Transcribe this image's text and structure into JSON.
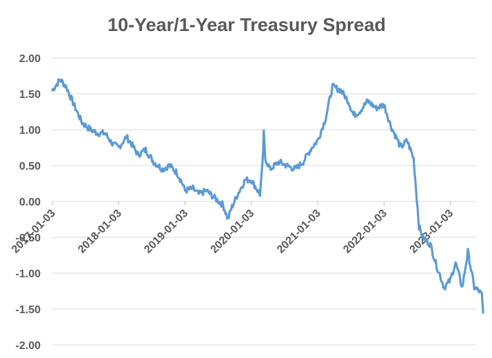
{
  "chart_data": {
    "type": "line",
    "title": "10-Year/1-Year Treasury Spread",
    "xlabel": "",
    "ylabel": "",
    "ylim": [
      -2.0,
      2.0
    ],
    "y_ticks": [
      "2.00",
      "1.50",
      "1.00",
      "0.50",
      "0.00",
      "-0.50",
      "-1.00",
      "-1.50",
      "-2.00"
    ],
    "x_ticks": [
      "2017-01-03",
      "2018-01-03",
      "2019-01-03",
      "2020-01-03",
      "2021-01-03",
      "2022-01-03",
      "2023-01-03"
    ],
    "grid": true,
    "legend": "none",
    "colors": {
      "line": "#5b9bd5",
      "grid": "#d9d9d9",
      "text": "#595959"
    },
    "series": [
      {
        "x": [
          "2017-01-03",
          "2017-02-15",
          "2017-03-20",
          "2017-05-01",
          "2017-06-15",
          "2017-08-01",
          "2017-09-10",
          "2017-10-20",
          "2017-12-01",
          "2018-01-03",
          "2018-02-15",
          "2018-03-15",
          "2018-04-20",
          "2018-06-01",
          "2018-07-15",
          "2018-09-01",
          "2018-10-10",
          "2018-11-20",
          "2018-12-20",
          "2019-01-03",
          "2019-02-15",
          "2019-03-20",
          "2019-05-01",
          "2019-06-15",
          "2019-08-01",
          "2019-08-28",
          "2019-09-15",
          "2019-10-20",
          "2019-12-01",
          "2020-01-03",
          "2020-02-20",
          "2020-03-05",
          "2020-03-12",
          "2020-03-20",
          "2020-04-15",
          "2020-06-05",
          "2020-07-15",
          "2020-09-01",
          "2020-10-15",
          "2020-12-01",
          "2021-01-03",
          "2021-02-15",
          "2021-03-25",
          "2021-05-10",
          "2021-06-20",
          "2021-07-20",
          "2021-08-20",
          "2021-10-05",
          "2021-11-20",
          "2022-01-03",
          "2022-02-10",
          "2022-03-10",
          "2022-04-05",
          "2022-05-10",
          "2022-06-15",
          "2022-07-15",
          "2022-08-05",
          "2022-09-15",
          "2022-10-20",
          "2022-12-01",
          "2023-01-03",
          "2023-02-01",
          "2023-03-10",
          "2023-04-10",
          "2023-05-15",
          "2023-06-10",
          "2023-06-25",
          "2023-07-03"
        ],
        "y": [
          1.55,
          1.7,
          1.6,
          1.35,
          1.1,
          1.0,
          0.95,
          0.95,
          0.8,
          0.75,
          0.9,
          0.8,
          0.65,
          0.72,
          0.55,
          0.45,
          0.5,
          0.4,
          0.25,
          0.15,
          0.18,
          0.1,
          0.15,
          0.05,
          -0.05,
          -0.25,
          -0.1,
          0.1,
          0.3,
          0.3,
          0.1,
          0.5,
          0.95,
          0.6,
          0.45,
          0.55,
          0.5,
          0.45,
          0.55,
          0.75,
          0.85,
          1.15,
          1.6,
          1.55,
          1.4,
          1.2,
          1.25,
          1.4,
          1.3,
          1.35,
          1.05,
          0.9,
          0.75,
          0.85,
          0.6,
          -0.35,
          -0.5,
          -0.6,
          -0.9,
          -1.2,
          -1.1,
          -0.85,
          -1.2,
          -0.7,
          -1.2,
          -1.25,
          -1.3,
          -1.55
        ]
      }
    ]
  }
}
